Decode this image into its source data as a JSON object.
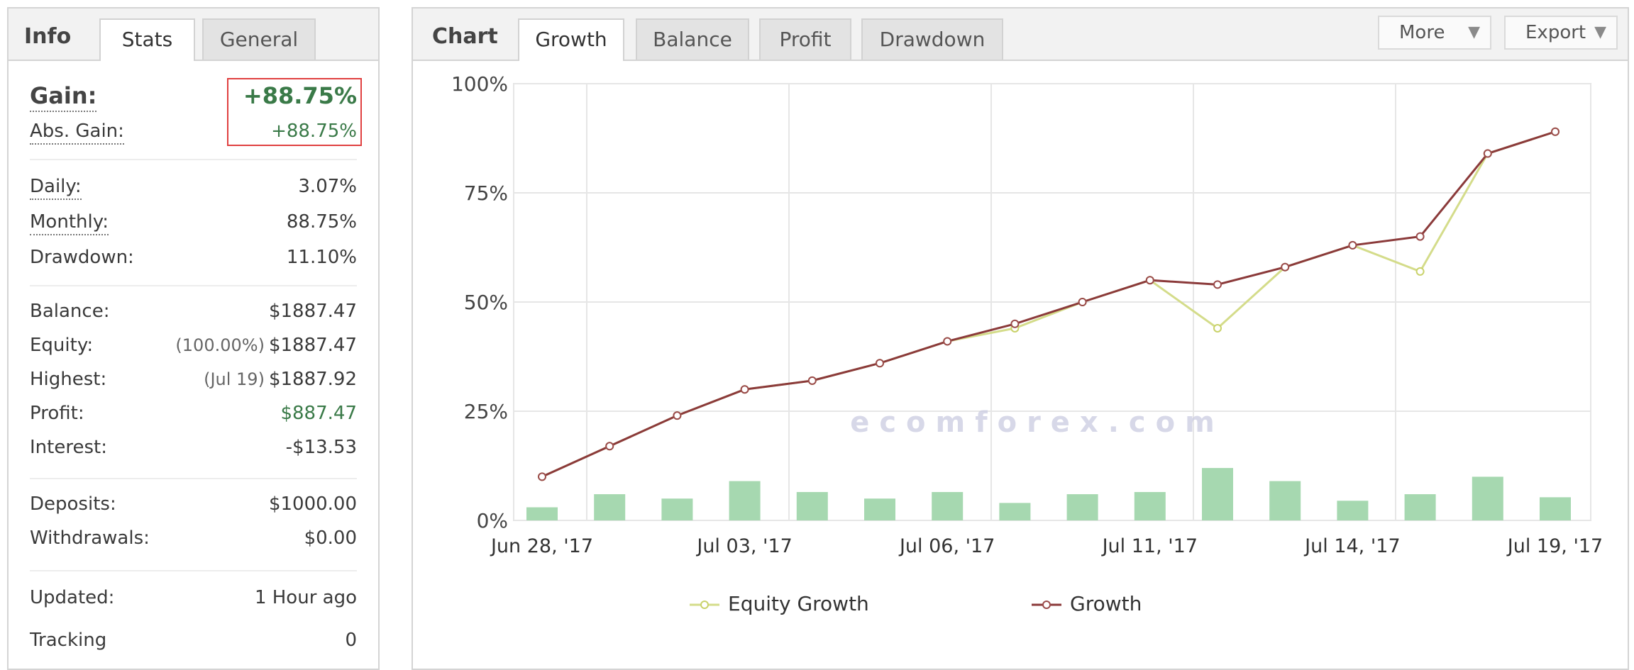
{
  "left_tabs": {
    "title": "Info",
    "tabs": [
      "Stats",
      "General"
    ],
    "active": 0
  },
  "stats": {
    "gain": {
      "label": "Gain:",
      "value": "+88.75%"
    },
    "abs_gain": {
      "label": "Abs. Gain:",
      "value": "+88.75%"
    },
    "daily": {
      "label": "Daily:",
      "value": "3.07%"
    },
    "monthly": {
      "label": "Monthly:",
      "value": "88.75%"
    },
    "drawdown": {
      "label": "Drawdown:",
      "value": "11.10%"
    },
    "balance": {
      "label": "Balance:",
      "value": "$1887.47"
    },
    "equity": {
      "label": "Equity:",
      "sub": "(100.00%)",
      "value": "$1887.47"
    },
    "highest": {
      "label": "Highest:",
      "sub": "(Jul 19)",
      "value": "$1887.92"
    },
    "profit": {
      "label": "Profit:",
      "value": "$887.47"
    },
    "interest": {
      "label": "Interest:",
      "value": "-$13.53"
    },
    "deposits": {
      "label": "Deposits:",
      "value": "$1000.00"
    },
    "withdrawals": {
      "label": "Withdrawals:",
      "value": "$0.00"
    },
    "updated": {
      "label": "Updated:",
      "value": "1 Hour ago"
    },
    "tracking": {
      "label": "Tracking",
      "value": "0"
    }
  },
  "right_tabs": {
    "title": "Chart",
    "tabs": [
      "Growth",
      "Balance",
      "Profit",
      "Drawdown"
    ],
    "active": 0,
    "more_label": "More",
    "export_label": "Export"
  },
  "watermark": {
    "text": "ecomforex.com"
  },
  "colors": {
    "growth": "#8b3a3a",
    "equity_growth": "#d4dc8a",
    "bars": "#a6d8b0",
    "gain_box": "#e04040",
    "green_text": "#3a7a48"
  },
  "chart_data": {
    "type": "line",
    "x_tick_labels": [
      "Jun 28, '17",
      "Jul 03, '17",
      "Jul 06, '17",
      "Jul 11, '17",
      "Jul 14, '17",
      "Jul 19, '17"
    ],
    "y_tick_labels": [
      "0%",
      "25%",
      "50%",
      "75%",
      "100%"
    ],
    "ylim": [
      0,
      100
    ],
    "x_count": 16,
    "series": [
      {
        "name": "Equity Growth",
        "values": [
          10,
          17,
          24,
          30,
          32,
          36,
          41,
          44,
          50,
          55,
          44,
          58,
          63,
          57,
          84,
          89
        ]
      },
      {
        "name": "Growth",
        "values": [
          10,
          17,
          24,
          30,
          32,
          36,
          41,
          45,
          50,
          55,
          54,
          58,
          63,
          65,
          84,
          89
        ]
      }
    ],
    "bars": [
      3,
      6,
      5,
      9,
      6.5,
      5,
      6.5,
      4,
      6,
      6.5,
      12,
      9,
      4.5,
      6,
      10,
      5.3
    ],
    "grid": true,
    "legend": "bottom"
  }
}
